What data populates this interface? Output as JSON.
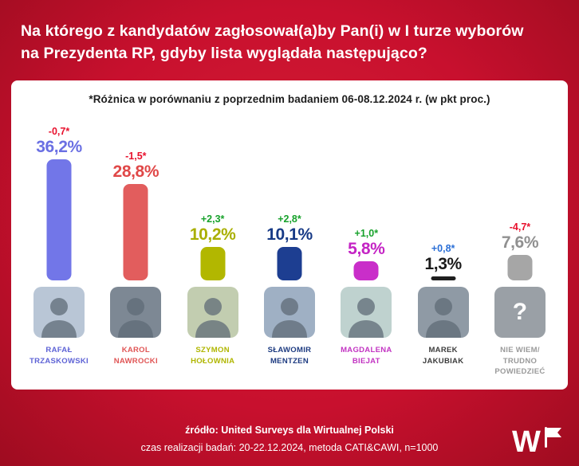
{
  "header": {
    "line1": "Na którego z kandydatów zagłosował(a)by Pan(i) w I turze wyborów",
    "line2": "na Prezydenta RP, gdyby lista wyglądała następująco?"
  },
  "chart_note": "*Różnica w porównaniu z poprzednim badaniem 06-08.12.2024 r. (w pkt proc.)",
  "chart_data": {
    "type": "bar",
    "title": "Na którego z kandydatów zagłosował(a)by Pan(i) w I turze wyborów na Prezydenta RP, gdyby lista wyglądała następująco?",
    "subtitle": "*Różnica w porównaniu z poprzednim badaniem 06-08.12.2024 r. (w pkt proc.)",
    "categories": [
      "Rafał Trzaskowski",
      "Karol Nawrocki",
      "Szymon Hołownia",
      "Sławomir Mentzen",
      "Magdalena Biejat",
      "Marek Jakubiak",
      "Nie wiem / trudno powiedzieć"
    ],
    "values": [
      36.2,
      28.8,
      10.2,
      10.1,
      5.8,
      1.3,
      7.6
    ],
    "value_labels": [
      "36,2%",
      "28,8%",
      "10,2%",
      "10,1%",
      "5,8%",
      "1,3%",
      "7,6%"
    ],
    "change_labels": [
      "-0,7*",
      "-1,5*",
      "+2,3*",
      "+2,8*",
      "+1,0*",
      "+0,8*",
      "-4,7*"
    ],
    "bar_colors": [
      "#7276e8",
      "#e25d5d",
      "#b2b700",
      "#1d3e91",
      "#c92ec9",
      "#1f1f1f",
      "#a6a6a6"
    ],
    "ylabel": "",
    "xlabel": "",
    "ylim": [
      0,
      40
    ],
    "grid": false,
    "legend": "none"
  },
  "candidates": [
    {
      "name": "RAFAŁ\nTRZASKOWSKI",
      "value": 36.2,
      "value_label": "36,2%",
      "change_label": "-0,7*",
      "bar_color": "#7276e8",
      "value_color": "#6a6fe3",
      "name_color": "#5e63d6",
      "change_color": "#e8112d",
      "photo": "portrait",
      "photo_bg": "#b9c6d6"
    },
    {
      "name": "KAROL\nNAWROCKI",
      "value": 28.8,
      "value_label": "28,8%",
      "change_label": "-1,5*",
      "bar_color": "#e25d5d",
      "value_color": "#e04848",
      "name_color": "#e05555",
      "change_color": "#e8112d",
      "photo": "portrait",
      "photo_bg": "#7d8894"
    },
    {
      "name": "SZYMON\nHOŁOWNIA",
      "value": 10.2,
      "value_label": "10,2%",
      "change_label": "+2,3*",
      "bar_color": "#b2b700",
      "value_color": "#a9af00",
      "name_color": "#b0b600",
      "change_color": "#17a22b",
      "photo": "portrait",
      "photo_bg": "#c2cdb0"
    },
    {
      "name": "SŁAWOMIR\nMENTZEN",
      "value": 10.1,
      "value_label": "10,1%",
      "change_label": "+2,8*",
      "bar_color": "#1d3e91",
      "value_color": "#173a86",
      "name_color": "#1c3a80",
      "change_color": "#17a22b",
      "photo": "portrait",
      "photo_bg": "#9fb0c4"
    },
    {
      "name": "MAGDALENA\nBIEJAT",
      "value": 5.8,
      "value_label": "5,8%",
      "change_label": "+1,0*",
      "bar_color": "#c92ec9",
      "value_color": "#c424c4",
      "name_color": "#c233c2",
      "change_color": "#17a22b",
      "photo": "portrait",
      "photo_bg": "#bfd2cf"
    },
    {
      "name": "MAREK\nJAKUBIAK",
      "value": 1.3,
      "value_label": "1,3%",
      "change_label": "+0,8*",
      "bar_color": "#1f1f1f",
      "value_color": "#1a1a1a",
      "name_color": "#3c3c3c",
      "change_color": "#2b6fd6",
      "photo": "portrait",
      "photo_bg": "#8f9aa5"
    },
    {
      "name": "NIE WIEM/\nTRUDNO\nPOWIEDZIEĆ",
      "value": 7.6,
      "value_label": "7,6%",
      "change_label": "-4,7*",
      "bar_color": "#a6a6a6",
      "value_color": "#909090",
      "name_color": "#9a9a9a",
      "change_color": "#e8112d",
      "photo": "question",
      "photo_glyph": "?",
      "photo_bg": "#9aa0a6"
    }
  ],
  "footer": {
    "source": "źródło: United Surveys dla Wirtualnej Polski",
    "details": "czas realizacji badań: 20-22.12.2024, metoda CATI&CAWI, n=1000"
  },
  "logo_text": "W"
}
